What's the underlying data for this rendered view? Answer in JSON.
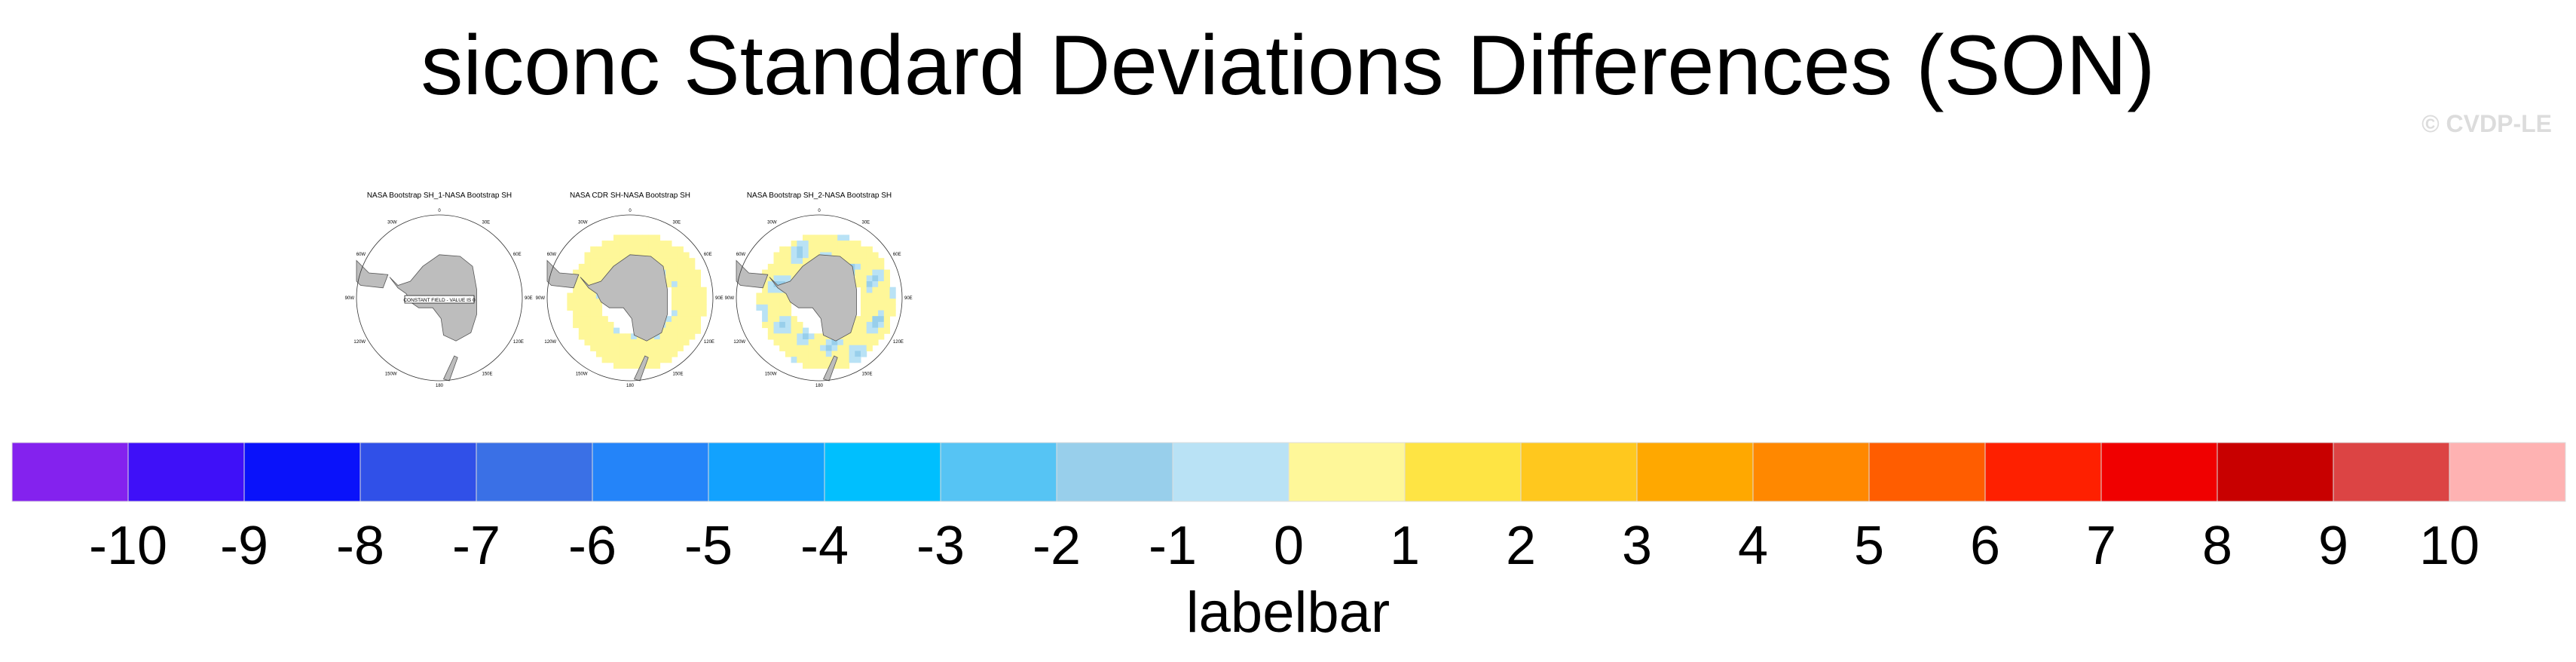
{
  "title": "siconc Standard Deviations Differences (SON)",
  "credit": "© CVDP-LE",
  "panels": [
    {
      "title": "NASA Bootstrap SH_1-NASA Bootstrap SH",
      "note": "CONSTANT FIELD - VALUE IS 0",
      "field": "none"
    },
    {
      "title": "NASA CDR SH-NASA Bootstrap SH",
      "note": "",
      "field": "yellow-ring"
    },
    {
      "title": "NASA Bootstrap SH_2-NASA Bootstrap SH",
      "note": "",
      "field": "yellow-blue-ring"
    }
  ],
  "lon_labels": [
    "0",
    "30E",
    "60E",
    "90E",
    "120E",
    "150E",
    "180",
    "150W",
    "120W",
    "90W",
    "60W",
    "30W"
  ],
  "chart_data": {
    "type": "heatmap",
    "projection": "south-polar-stereographic",
    "title": "siconc Standard Deviations Differences (SON)",
    "colorbar": {
      "label": "labelbar",
      "ticks": [
        "-10",
        "-9",
        "-8",
        "-7",
        "-6",
        "-5",
        "-4",
        "-3",
        "-2",
        "-1",
        "0",
        "1",
        "2",
        "3",
        "4",
        "5",
        "6",
        "7",
        "8",
        "9",
        "10"
      ],
      "colors": [
        "#8422EE",
        "#3F10F8",
        "#0A12FA",
        "#3050E8",
        "#3A70E6",
        "#2484F9",
        "#12A2FE",
        "#00BFFE",
        "#56C4F4",
        "#98CFEB",
        "#B9E2F5",
        "#FEF799",
        "#FEE444",
        "#FFC81E",
        "#FFA800",
        "#FF8800",
        "#FF5D00",
        "#FE2000",
        "#F00000",
        "#C80000",
        "#DC4444",
        "#FEB2B2"
      ]
    }
  }
}
